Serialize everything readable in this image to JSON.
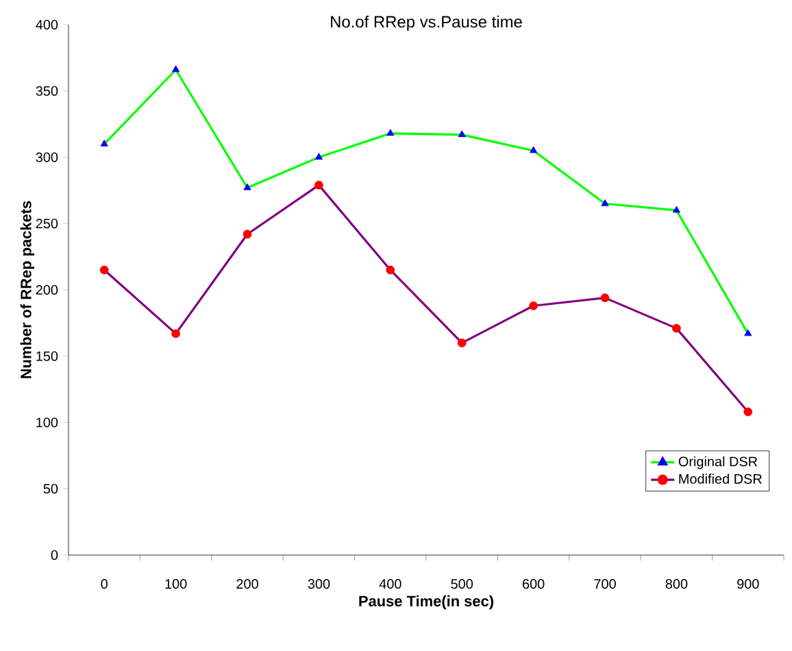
{
  "chart_data": {
    "type": "line",
    "title": "No.of RRep vs.Pause time",
    "xlabel": "Pause Time(in sec)",
    "ylabel": "Number of RRep packets",
    "categories": [
      "0",
      "100",
      "200",
      "300",
      "400",
      "500",
      "600",
      "700",
      "800",
      "900"
    ],
    "series": [
      {
        "name": "Original DSR",
        "color": "#00ff00",
        "colors": [
          "#0000ff",
          "#0000ff",
          "#0000ff",
          "#0000ff",
          "#0000ff",
          "#0000ff",
          "#0000ff",
          "#0000ff",
          "#0000ff",
          "#0000ff"
        ],
        "marker": "triangle",
        "values": [
          310,
          366,
          277,
          300,
          318,
          317,
          305,
          265,
          260,
          167
        ]
      },
      {
        "name": "Modified DSR",
        "color": "#800080",
        "colors": [
          "#ff0000",
          "#ff0000",
          "#ff0000",
          "#ff0000",
          "#ff0000",
          "#ff0000",
          "#ff0000",
          "#ff0000",
          "#ff0000",
          "#ff0000"
        ],
        "marker": "circle",
        "values": [
          215,
          167,
          242,
          279,
          215,
          160,
          188,
          194,
          171,
          108
        ]
      }
    ],
    "ylim": [
      0,
      400
    ],
    "yticks": [
      0,
      50,
      100,
      150,
      200,
      250,
      300,
      350,
      400
    ],
    "legend": "bottom right",
    "grid": false
  }
}
